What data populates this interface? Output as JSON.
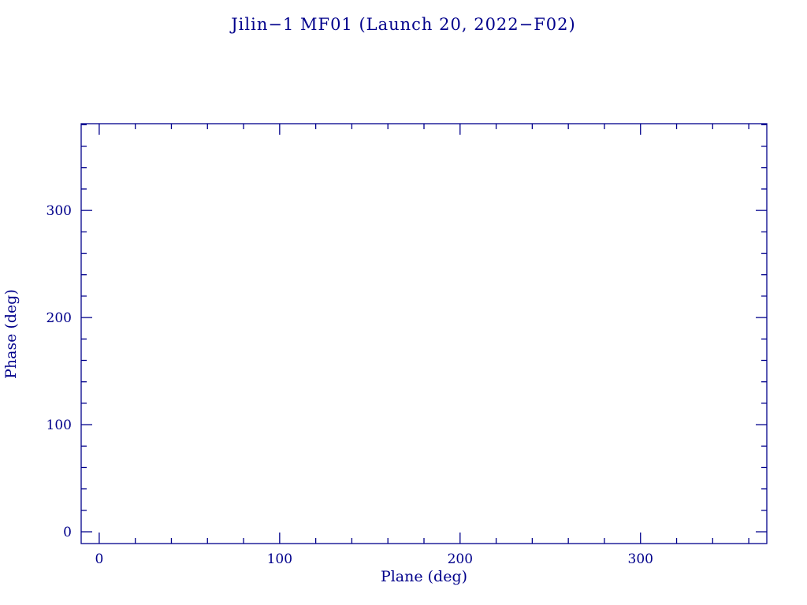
{
  "page": {
    "background": "#ffffff"
  },
  "chart_data": {
    "type": "scatter",
    "title": "Jilin−1 MF01 (Launch 20, 2022−F02)",
    "xlabel": "Plane (deg)",
    "ylabel": "Phase (deg)",
    "xlim": [
      -10,
      370
    ],
    "ylim": [
      -11,
      381
    ],
    "xticks": [
      0,
      100,
      200,
      300
    ],
    "yticks": [
      0,
      100,
      200,
      300
    ],
    "xtick_labels": [
      "0",
      "100",
      "200",
      "300"
    ],
    "ytick_labels": [
      "0",
      "100",
      "200",
      "300"
    ],
    "minor_tick_interval": 20,
    "series": [],
    "axis_color": "#00008b",
    "text_color": "#00008b",
    "grid": false,
    "legend_position": "none"
  }
}
